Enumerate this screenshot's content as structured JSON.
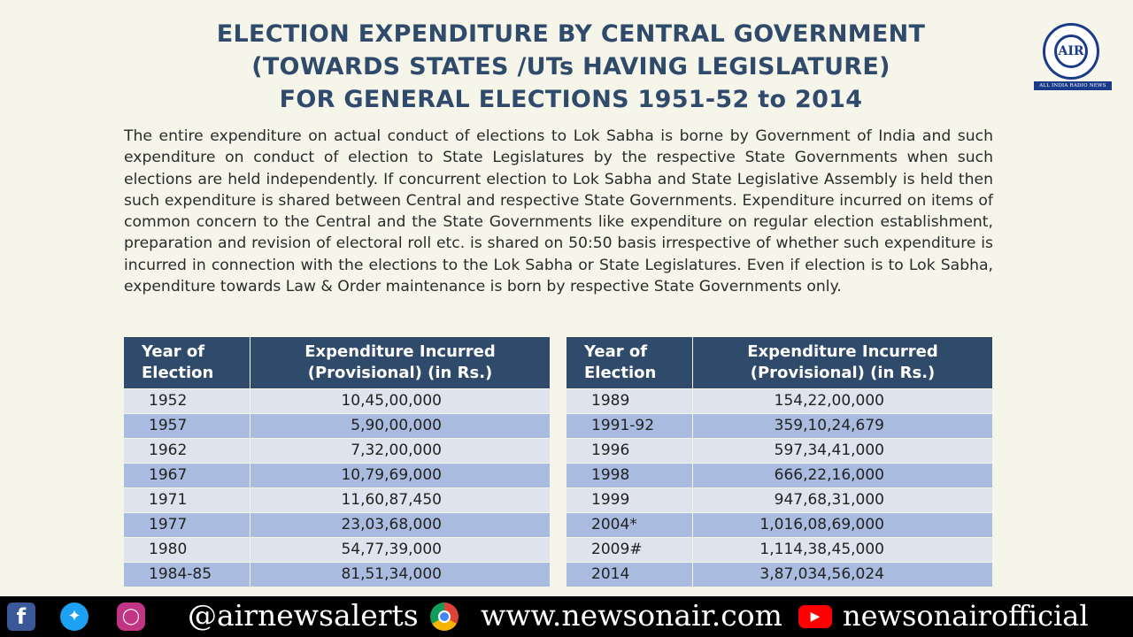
{
  "header": {
    "title_lines": [
      "ELECTION EXPENDITURE BY CENTRAL GOVERNMENT",
      "(TOWARDS STATES /UTs HAVING LEGISLATURE)",
      "FOR GENERAL ELECTIONS 1951-52 to 2014"
    ],
    "logo_text": "AIR",
    "logo_band": "ALL INDIA RADIO NEWS"
  },
  "paragraph": "The entire expenditure on actual conduct of elections to Lok Sabha is borne by Government of India and such expenditure on conduct of election to State Legislatures by the respective State Governments when such elections are held independently. If concurrent election to Lok Sabha and State Legislative Assembly is held then such expenditure is shared between Central and respective State Governments. Expenditure incurred on items of common concern to the Central and the State Governments like expenditure on regular election establishment, preparation and revision of electoral roll etc. is shared on 50:50 basis irrespective of whether such expenditure is incurred in connection with the elections to the Lok Sabha or State Legislatures. Even if election is to Lok Sabha, expenditure towards Law & Order maintenance is born by respective State Governments only.",
  "table_headers": {
    "year_line1": "Year of",
    "year_line2": "Election",
    "exp_line1": "Expenditure Incurred",
    "exp_line2": "(Provisional) (in Rs.)"
  },
  "left_rows": [
    {
      "year": "1952",
      "value": "10,45,00,000"
    },
    {
      "year": "1957",
      "value": "5,90,00,000"
    },
    {
      "year": "1962",
      "value": "7,32,00,000"
    },
    {
      "year": "1967",
      "value": "10,79,69,000"
    },
    {
      "year": "1971",
      "value": "11,60,87,450"
    },
    {
      "year": "1977",
      "value": "23,03,68,000"
    },
    {
      "year": "1980",
      "value": "54,77,39,000"
    },
    {
      "year": "1984-85",
      "value": "81,51,34,000"
    }
  ],
  "right_rows": [
    {
      "year": "1989",
      "value": "154,22,00,000"
    },
    {
      "year": "1991-92",
      "value": "359,10,24,679"
    },
    {
      "year": "1996",
      "value": "597,34,41,000"
    },
    {
      "year": "1998",
      "value": "666,22,16,000"
    },
    {
      "year": "1999",
      "value": "947,68,31,000"
    },
    {
      "year": "2004*",
      "value": "1,016,08,69,000"
    },
    {
      "year": "2009#",
      "value": "1,114,38,45,000"
    },
    {
      "year": "2014",
      "value": "3,87,034,56,024"
    }
  ],
  "footer": {
    "icons": {
      "facebook": "facebook-icon",
      "twitter": "twitter-icon",
      "instagram": "instagram-icon",
      "chrome": "chrome-icon",
      "youtube": "youtube-icon"
    },
    "handle": "@airnewsalerts",
    "website": "www.newsonair.com",
    "youtube_channel": "newsonairofficial"
  },
  "colors": {
    "background": "#f6f5e9",
    "title": "#2f4a6b",
    "header_fill": "#2f4a6b",
    "row_light": "#dfe3ee",
    "row_dark": "#a9bcdf",
    "footer": "#000000"
  }
}
